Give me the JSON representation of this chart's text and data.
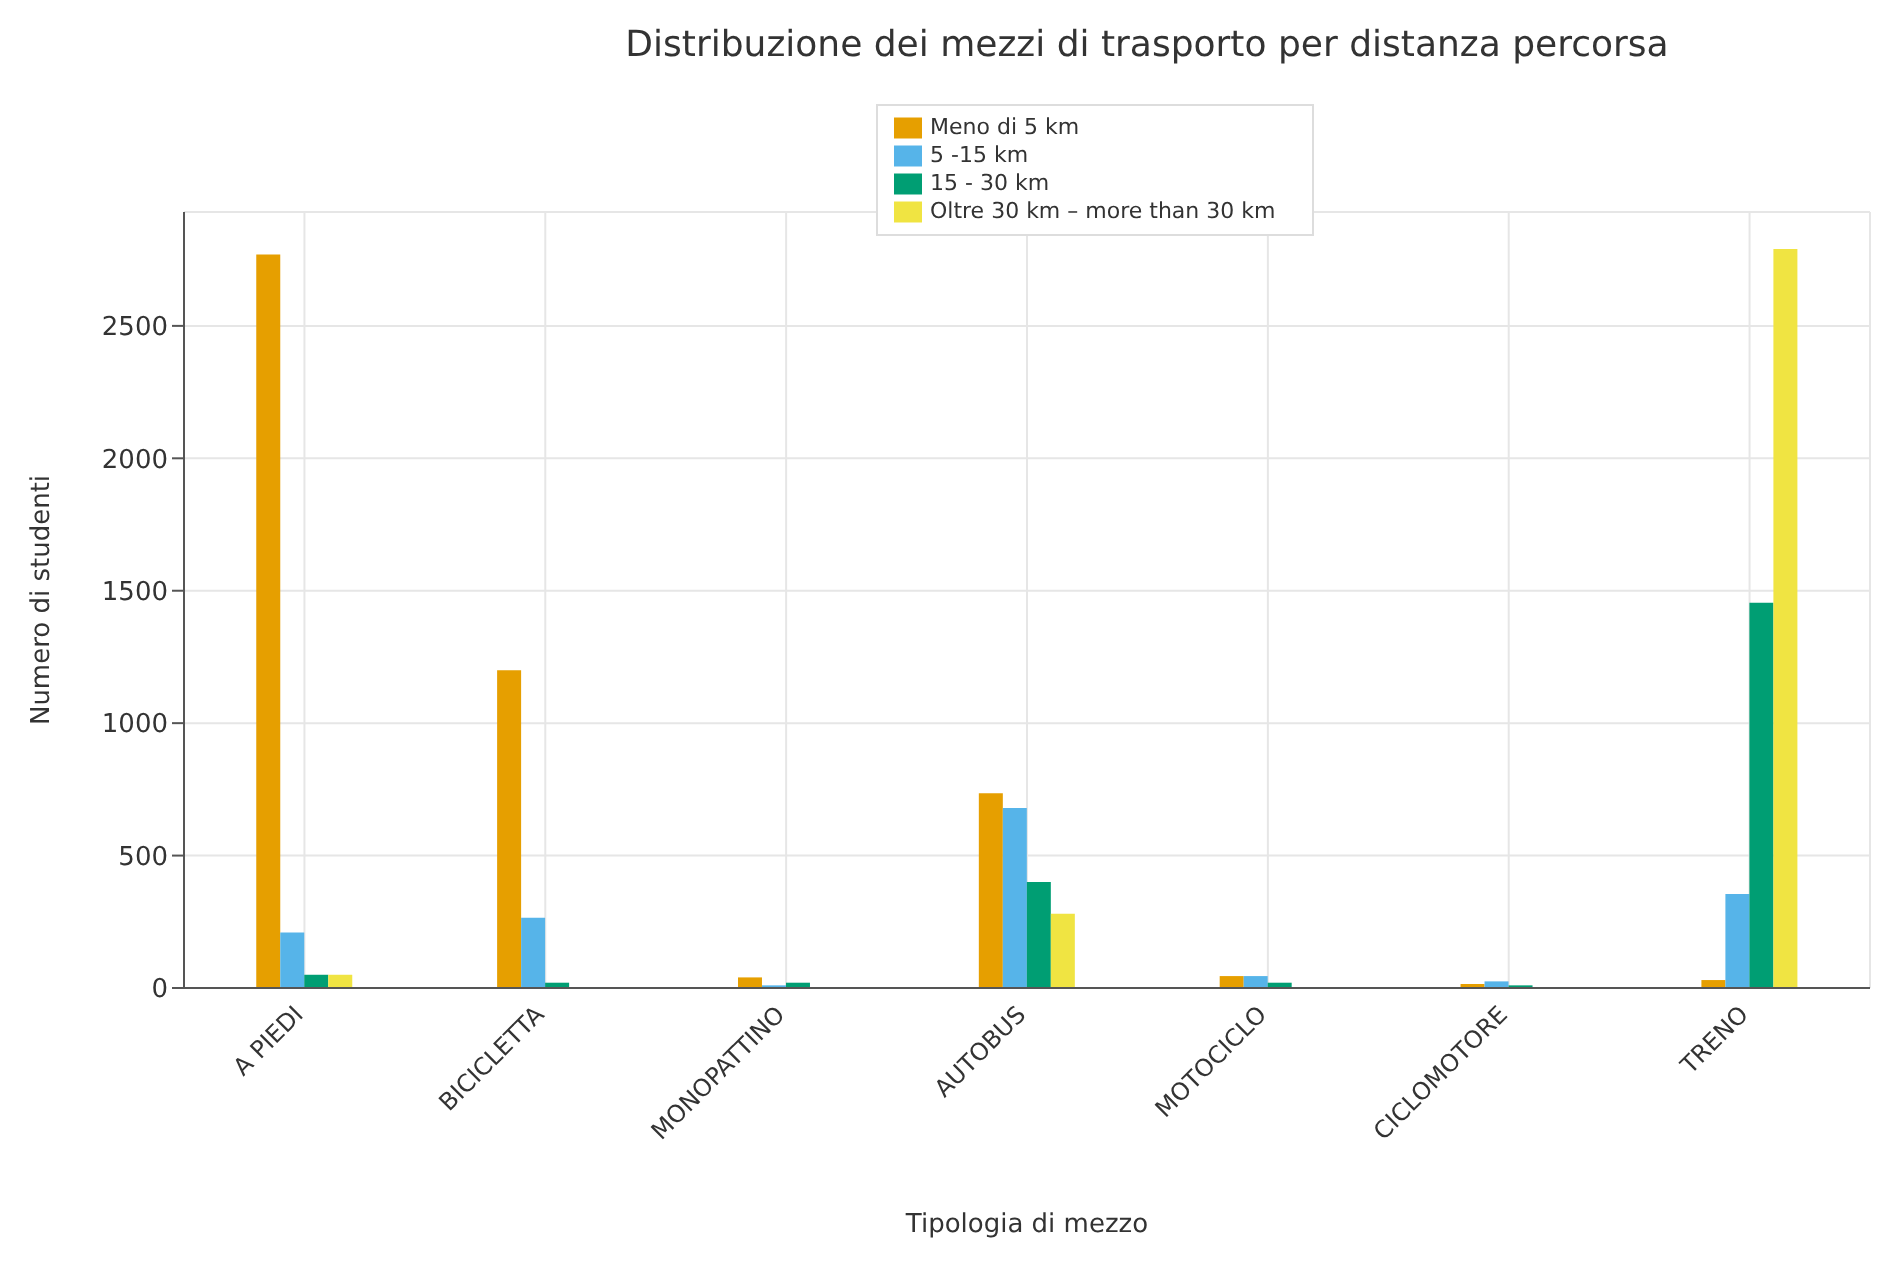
{
  "chart_data": {
    "type": "bar",
    "title": "Distribuzione dei mezzi di trasporto per distanza percorsa",
    "xlabel": "Tipologia di mezzo",
    "ylabel": "Numero di studenti",
    "categories": [
      "A PIEDI",
      "BICICLETTA",
      "MONOPATTINO",
      "AUTOBUS",
      "MOTOCICLO",
      "CICLOMOTORE",
      "TRENO"
    ],
    "series": [
      {
        "name": "Meno di 5 km",
        "color": "#e69f00",
        "values": [
          2770,
          1200,
          40,
          735,
          45,
          15,
          30
        ]
      },
      {
        "name": "5 -15 km",
        "color": "#56b4e9",
        "values": [
          210,
          265,
          10,
          680,
          45,
          25,
          355
        ]
      },
      {
        "name": "15 - 30 km",
        "color": "#009e73",
        "values": [
          50,
          20,
          20,
          400,
          20,
          10,
          1455
        ]
      },
      {
        "name": "Oltre 30 km – more than 30 km",
        "color": "#f0e442",
        "values": [
          50,
          0,
          null,
          280,
          null,
          0,
          2790
        ]
      }
    ],
    "ylim": [
      0,
      2930
    ],
    "yticks": [
      0,
      500,
      1000,
      1500,
      2000,
      2500
    ],
    "grid": true,
    "legend": "top"
  }
}
